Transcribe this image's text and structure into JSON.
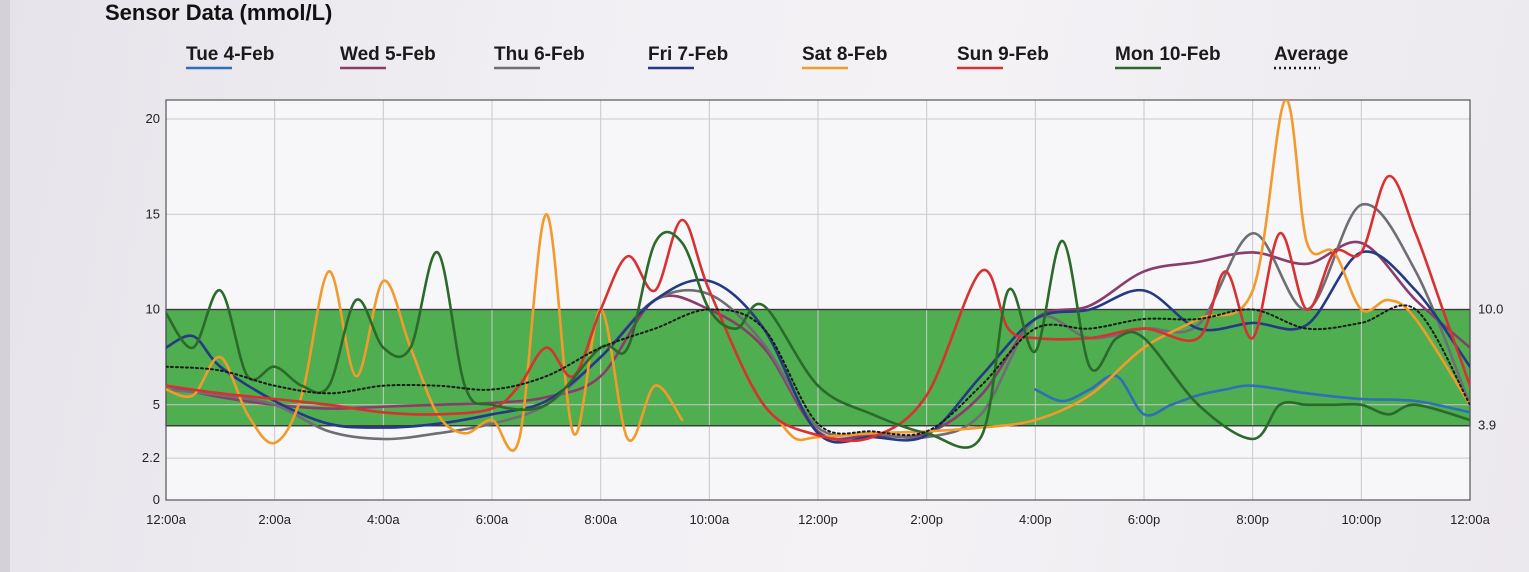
{
  "chart_data": {
    "type": "line",
    "title": "Sensor Data (mmol/L)",
    "x_tick_labels": [
      "12:00a",
      "2:00a",
      "4:00a",
      "6:00a",
      "8:00a",
      "10:00a",
      "12:00p",
      "2:00p",
      "4:00p",
      "6:00p",
      "8:00p",
      "10:00p",
      "12:00a"
    ],
    "xlim_hours": [
      0,
      24
    ],
    "y_tick_labels": [
      "0",
      "2.2",
      "5",
      "10",
      "15",
      "20"
    ],
    "y_ticks": [
      0,
      2.2,
      5,
      10,
      15,
      20
    ],
    "ylim": [
      0,
      21
    ],
    "target_range": {
      "low": 3.9,
      "high": 10.0,
      "low_label": "3.9",
      "high_label": "10.0",
      "color": "#4fae4f"
    },
    "grid": true,
    "legend_position": "top",
    "series": [
      {
        "name": "Tue 4-Feb",
        "color": "#2f6fb5",
        "dashed": false,
        "x": [
          16.0,
          16.5,
          17.0,
          17.5,
          18.0,
          18.5,
          19.0,
          19.5,
          20.0,
          21.0,
          22.0,
          23.0,
          24.0
        ],
        "y": [
          5.8,
          5.2,
          5.8,
          6.5,
          4.5,
          5.0,
          5.5,
          5.8,
          6.0,
          5.6,
          5.3,
          5.2,
          4.6
        ]
      },
      {
        "name": "Wed 5-Feb",
        "color": "#8a3d6b",
        "dashed": false,
        "x": [
          0,
          1,
          2,
          3,
          4,
          5,
          6,
          7,
          8,
          9,
          10,
          11,
          12,
          13,
          14,
          15,
          16,
          17,
          18,
          19,
          20,
          21,
          22,
          23,
          24
        ],
        "y": [
          6,
          5.4,
          5,
          4.8,
          4.9,
          5,
          5.1,
          5.4,
          6.5,
          10.5,
          10,
          8,
          3.6,
          3.4,
          3.5,
          5.5,
          9.5,
          10.2,
          12,
          12.5,
          13,
          12.4,
          13.5,
          10.5,
          8
        ]
      },
      {
        "name": "Thu 6-Feb",
        "color": "#6e6e74",
        "dashed": false,
        "x": [
          0,
          1,
          2,
          3,
          4,
          5,
          6,
          7,
          8,
          9,
          10,
          11,
          12,
          13,
          14,
          15,
          16,
          17,
          18,
          19,
          20,
          21,
          22,
          23,
          24
        ],
        "y": [
          5.8,
          5.5,
          5,
          3.6,
          3.2,
          3.5,
          4,
          5,
          7.5,
          10.5,
          10.8,
          8.2,
          3.8,
          3.5,
          3.3,
          4.5,
          9.5,
          8.5,
          9,
          9.2,
          14,
          10,
          15.5,
          12,
          5
        ]
      },
      {
        "name": "Fri 7-Feb",
        "color": "#253a85",
        "dashed": false,
        "x": [
          0,
          0.5,
          1,
          2,
          3,
          4,
          5,
          6,
          7,
          8,
          9,
          10,
          11,
          12,
          13,
          14,
          15,
          16,
          17,
          18,
          19,
          20,
          21,
          22,
          23,
          24
        ],
        "y": [
          8,
          8.6,
          7,
          5.2,
          4,
          3.8,
          4,
          4.5,
          5.2,
          7.5,
          10.5,
          11.5,
          9,
          3.5,
          3.3,
          3.4,
          6.5,
          9.5,
          10,
          11,
          9,
          9.3,
          9.2,
          13,
          11,
          7
        ]
      },
      {
        "name": "Sat 8-Feb",
        "color": "#f39a2c",
        "dashed": false,
        "x": [
          0,
          0.5,
          1,
          1.5,
          2,
          2.5,
          3,
          3.5,
          4,
          4.5,
          5,
          5.5,
          6,
          6.5,
          7,
          7.5,
          8,
          8.5,
          9,
          9.5
        ],
        "y": [
          5.8,
          5.5,
          7.5,
          4.5,
          3,
          5.5,
          12,
          6.5,
          11.5,
          8,
          4.5,
          3.5,
          4.2,
          3.2,
          15,
          3.5,
          10,
          3.2,
          6,
          4.2
        ]
      },
      {
        "name": "Sat 8-Feb",
        "color": "#f39a2c",
        "dashed": false,
        "x": [
          11.3,
          11.6,
          12,
          13,
          14,
          15,
          16,
          17,
          18,
          19,
          20,
          20.6,
          21,
          21.5,
          22,
          22.5,
          23,
          24
        ],
        "y": [
          4.1,
          3.2,
          3.3,
          3.5,
          3.6,
          3.8,
          4.2,
          5.5,
          8,
          9.5,
          11,
          21,
          13.5,
          13,
          10,
          10.5,
          9.5,
          5
        ]
      },
      {
        "name": "Sun 9-Feb",
        "color": "#d83131",
        "dashed": false,
        "x": [
          0,
          1,
          2,
          3,
          4,
          5,
          6,
          6.5,
          7,
          7.5,
          8,
          8.5,
          9,
          9.5,
          10,
          11,
          12,
          13,
          14,
          15,
          15.5,
          16,
          17,
          18,
          19,
          19.5,
          20,
          20.5,
          21,
          21.5,
          22,
          22.5,
          23,
          23.5,
          24
        ],
        "y": [
          6,
          5.6,
          5.3,
          5,
          4.6,
          4.5,
          4.8,
          6,
          8,
          6.5,
          10,
          12.8,
          11,
          14.7,
          11,
          5,
          3.4,
          3.3,
          5.5,
          12,
          9,
          8.5,
          8.5,
          9,
          8.5,
          12,
          8.5,
          14,
          10,
          13,
          13,
          17,
          14,
          10,
          6
        ]
      },
      {
        "name": "Mon 10-Feb",
        "color": "#2b6a2b",
        "dashed": false,
        "x": [
          0,
          0.5,
          1,
          1.5,
          2,
          2.5,
          3,
          3.5,
          4,
          4.5,
          5,
          5.5,
          6,
          7,
          8,
          8.5,
          9,
          9.5,
          10,
          10.5,
          11,
          12,
          13,
          14,
          15,
          15.5,
          16,
          16.5,
          17,
          17.5,
          18,
          19,
          20,
          20.5,
          21,
          21.5,
          22,
          22.5,
          23,
          24
        ],
        "y": [
          9.8,
          8,
          11,
          6.5,
          7,
          6,
          6,
          10.5,
          8,
          8,
          13,
          6,
          5,
          5,
          8,
          8,
          13.5,
          13.5,
          10,
          9,
          10.2,
          6,
          4.5,
          3.5,
          3.3,
          11,
          7.8,
          13.6,
          7,
          8.5,
          8.5,
          5,
          3.2,
          5,
          5,
          5,
          5,
          4.5,
          5,
          4.2
        ]
      },
      {
        "name": "Average",
        "color": "#1a1a1a",
        "dashed": true,
        "x": [
          0,
          1,
          2,
          3,
          4,
          5,
          6,
          7,
          8,
          9,
          10,
          11,
          12,
          13,
          14,
          15,
          16,
          17,
          18,
          19,
          20,
          21,
          22,
          23,
          24
        ],
        "y": [
          7,
          6.8,
          6,
          5.6,
          6,
          6,
          5.8,
          6.5,
          8,
          9,
          10,
          9,
          4,
          3.6,
          3.6,
          6,
          9,
          9,
          9.5,
          9.5,
          10,
          9,
          9.3,
          10,
          5
        ]
      }
    ]
  }
}
